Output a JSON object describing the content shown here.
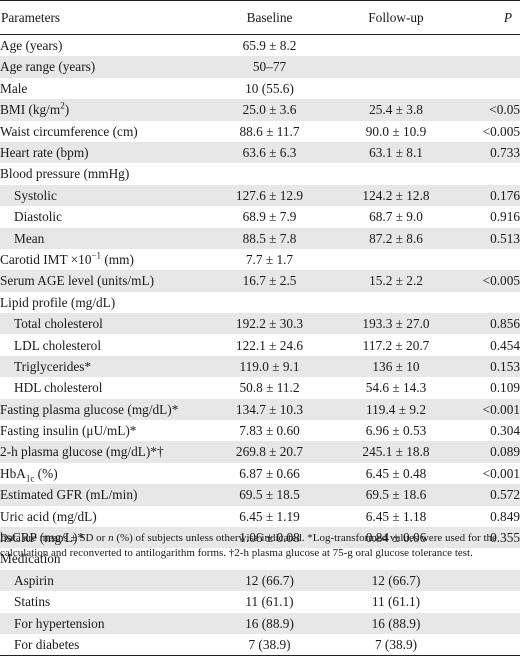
{
  "header": {
    "parameters": "Parameters",
    "baseline": "Baseline",
    "followup": "Follow-up",
    "p": "P"
  },
  "rows": [
    {
      "label": "Age (years)",
      "baseline": "65.9 ± 8.2",
      "followup": "",
      "p": "",
      "indent": false,
      "shade": false
    },
    {
      "label": "Age range (years)",
      "baseline": "50–77",
      "followup": "",
      "p": "",
      "indent": false,
      "shade": true
    },
    {
      "label": "Male",
      "baseline": "10 (55.6)",
      "followup": "",
      "p": "",
      "indent": false,
      "shade": false
    },
    {
      "label_parts": [
        "BMI (kg/m",
        "2",
        ")"
      ],
      "label_fmt": "sup",
      "baseline": "25.0 ± 3.6",
      "followup": "25.4 ± 3.8",
      "p": "<0.05",
      "indent": false,
      "shade": true
    },
    {
      "label": "Waist circumference (cm)",
      "baseline": "88.6 ± 11.7",
      "followup": "90.0 ± 10.9",
      "p": "<0.005",
      "indent": false,
      "shade": false
    },
    {
      "label": "Heart rate (bpm)",
      "baseline": "63.6 ± 6.3",
      "followup": "63.1 ± 8.1",
      "p": "0.733",
      "indent": false,
      "shade": true
    },
    {
      "label": "Blood pressure (mmHg)",
      "baseline": "",
      "followup": "",
      "p": "",
      "indent": false,
      "shade": false
    },
    {
      "label": "Systolic",
      "baseline": "127.6 ± 12.9",
      "followup": "124.2 ± 12.8",
      "p": "0.176",
      "indent": true,
      "shade": true
    },
    {
      "label": "Diastolic",
      "baseline": "68.9 ± 7.9",
      "followup": "68.7 ± 9.0",
      "p": "0.916",
      "indent": true,
      "shade": false
    },
    {
      "label": "Mean",
      "baseline": "88.5 ± 7.8",
      "followup": "87.2 ± 8.6",
      "p": "0.513",
      "indent": true,
      "shade": true
    },
    {
      "label_parts": [
        "Carotid IMT ×10",
        "−1",
        " (mm)"
      ],
      "label_fmt": "sup",
      "baseline": "7.7 ± 1.7",
      "followup": "",
      "p": "",
      "indent": false,
      "shade": false
    },
    {
      "label": "Serum AGE level (units/mL)",
      "baseline": "16.7 ± 2.5",
      "followup": "15.2 ± 2.2",
      "p": "<0.005",
      "indent": false,
      "shade": true
    },
    {
      "label": "Lipid profile (mg/dL)",
      "baseline": "",
      "followup": "",
      "p": "",
      "indent": false,
      "shade": false
    },
    {
      "label": "Total cholesterol",
      "baseline": "192.2 ± 30.3",
      "followup": "193.3 ± 27.0",
      "p": "0.856",
      "indent": true,
      "shade": true
    },
    {
      "label": "LDL cholesterol",
      "baseline": "122.1 ± 24.6",
      "followup": "117.2 ± 20.7",
      "p": "0.454",
      "indent": true,
      "shade": false
    },
    {
      "label": "Triglycerides*",
      "baseline": "119.0 ± 9.1",
      "followup": "136 ± 10",
      "p": "0.153",
      "indent": true,
      "shade": true
    },
    {
      "label": "HDL cholesterol",
      "baseline": "50.8 ± 11.2",
      "followup": "54.6 ± 14.3",
      "p": "0.109",
      "indent": true,
      "shade": false
    },
    {
      "label": "Fasting plasma glucose (mg/dL)*",
      "baseline": "134.7 ± 10.3",
      "followup": "119.4 ± 9.2",
      "p": "<0.001",
      "indent": false,
      "shade": true
    },
    {
      "label": "Fasting insulin (μU/mL)*",
      "baseline": "7.83 ± 0.60",
      "followup": "6.96 ± 0.53",
      "p": "0.304",
      "indent": false,
      "shade": false
    },
    {
      "label": "2-h plasma glucose (mg/dL)*†",
      "baseline": "269.8 ± 20.7",
      "followup": "245.1 ± 18.8",
      "p": "0.089",
      "indent": false,
      "shade": true
    },
    {
      "label_parts": [
        "HbA",
        "1c",
        " (%)"
      ],
      "label_fmt": "sub",
      "baseline": "6.87 ± 0.66",
      "followup": "6.45 ± 0.48",
      "p": "<0.001",
      "indent": false,
      "shade": false
    },
    {
      "label": "Estimated GFR (mL/min)",
      "baseline": "69.5 ± 18.5",
      "followup": "69.5 ± 18.6",
      "p": "0.572",
      "indent": false,
      "shade": true
    },
    {
      "label": "Uric acid (mg/dL)",
      "baseline": "6.45 ± 1.19",
      "followup": "6.45 ± 1.18",
      "p": "0.849",
      "indent": false,
      "shade": false
    },
    {
      "label": "hsCRP (mg/L)*",
      "baseline": "1.06 ± 0.08",
      "followup": "0.84 ± 0.06",
      "p": "0.355",
      "indent": false,
      "shade": true
    },
    {
      "label": "Medication",
      "baseline": "",
      "followup": "",
      "p": "",
      "indent": false,
      "shade": false
    },
    {
      "label": "Aspirin",
      "baseline": "12 (66.7)",
      "followup": "12 (66.7)",
      "p": "",
      "indent": true,
      "shade": true
    },
    {
      "label": "Statins",
      "baseline": "11 (61.1)",
      "followup": "11 (61.1)",
      "p": "",
      "indent": true,
      "shade": false
    },
    {
      "label": "For hypertension",
      "baseline": "16 (88.9)",
      "followup": "16 (88.9)",
      "p": "",
      "indent": true,
      "shade": true
    },
    {
      "label": "For diabetes",
      "baseline": "7 (38.9)",
      "followup": "7 (38.9)",
      "p": "",
      "indent": true,
      "shade": false
    }
  ],
  "footnote": "Data are means ± SD or n (%) of subjects unless otherwise indicated. *Log-transformed values were used for the calculation and reconverted to antilogarithm forms. †2-h plasma glucose at 75-g oral glucose tolerance test."
}
